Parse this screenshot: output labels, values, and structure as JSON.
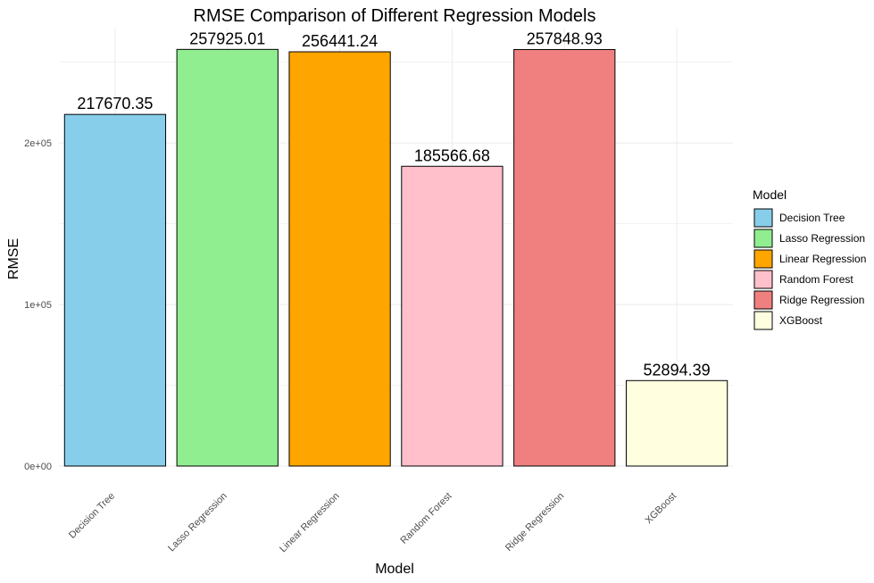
{
  "chart_data": {
    "type": "bar",
    "title": "RMSE Comparison of Different Regression Models",
    "xlabel": "Model",
    "ylabel": "RMSE",
    "categories": [
      "Decision Tree",
      "Lasso Regression",
      "Linear Regression",
      "Random Forest",
      "Ridge Regression",
      "XGBoost"
    ],
    "values": [
      217670.35,
      257925.01,
      256441.24,
      185566.68,
      257848.93,
      52894.39
    ],
    "value_labels": [
      "217670.35",
      "257925.01",
      "256441.24",
      "185566.68",
      "257848.93",
      "52894.39"
    ],
    "colors": [
      "#87CEEB",
      "#90EE90",
      "#FFA500",
      "#FFC0CB",
      "#F08080",
      "#FFFFE0"
    ],
    "y_ticks": [
      0,
      100000,
      200000
    ],
    "y_tick_labels": [
      "0e+00",
      "1e+05",
      "2e+05"
    ],
    "ylim": [
      0,
      270822
    ],
    "grid": true,
    "legend": {
      "title": "Model",
      "position": "right",
      "entries": [
        "Decision Tree",
        "Lasso Regression",
        "Linear Regression",
        "Random Forest",
        "Ridge Regression",
        "XGBoost"
      ]
    }
  }
}
